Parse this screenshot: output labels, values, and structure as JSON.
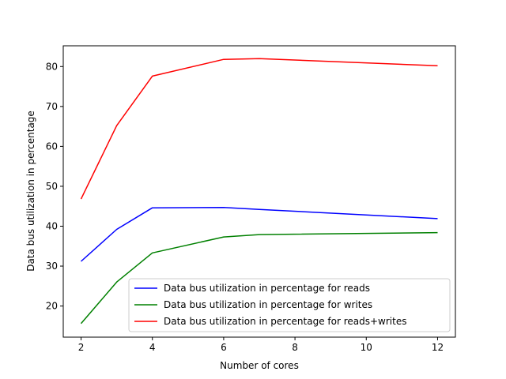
{
  "chart_data": {
    "type": "line",
    "title": "",
    "xlabel": "Number of cores",
    "ylabel": "Data bus utilization in percentage",
    "xlim": [
      1.5,
      12.5
    ],
    "ylim": [
      12.2,
      85.2
    ],
    "xticks": [
      2,
      4,
      6,
      8,
      10,
      12
    ],
    "yticks": [
      20,
      30,
      40,
      50,
      60,
      70,
      80
    ],
    "grid": false,
    "legend_position": "lower right",
    "x": [
      2,
      3,
      4,
      6,
      7,
      12
    ],
    "series": [
      {
        "name": "Data bus utilization in percentage for reads",
        "color": "#0000ff",
        "values": [
          31.2,
          39.2,
          44.6,
          44.7,
          44.2,
          41.9
        ]
      },
      {
        "name": "Data bus utilization in percentage for writes",
        "color": "#008000",
        "values": [
          15.6,
          26.0,
          33.3,
          37.3,
          37.9,
          38.4
        ]
      },
      {
        "name": "Data bus utilization in percentage for reads+writes",
        "color": "#ff0000",
        "values": [
          46.8,
          65.2,
          77.6,
          81.8,
          82.0,
          80.2
        ]
      }
    ]
  }
}
